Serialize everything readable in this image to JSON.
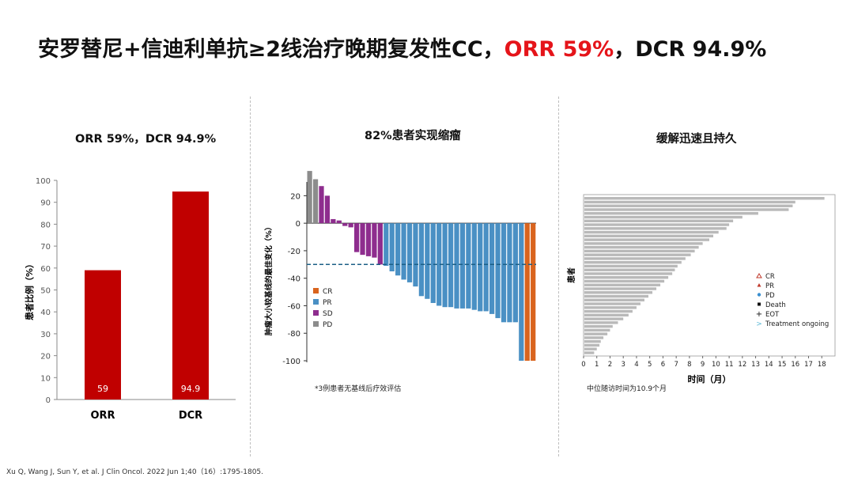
{
  "title": {
    "main": "安罗替尼+信迪利单抗≥2线治疗晚期复发性CC，",
    "orr": "ORR 59%",
    "sep": "，",
    "dcr": "DCR 94.9%"
  },
  "footnote": "Xu Q, Wang J, Sun Y, et al. J Clin Oncol. 2022 Jun 1;40（16）:1795-1805.",
  "chart_data": [
    {
      "type": "bar",
      "title": "ORR 59%，DCR 94.9%",
      "ylabel": "患者比例（%）",
      "ylim": [
        0,
        100
      ],
      "yticks": [
        "0",
        "10",
        "20",
        "30",
        "40",
        "50",
        "60",
        "70",
        "80",
        "90",
        "100"
      ],
      "categories": [
        "ORR",
        "DCR"
      ],
      "values": [
        59,
        94.9
      ],
      "value_labels": [
        "59",
        "94.9"
      ],
      "color": "#c00000"
    },
    {
      "type": "bar",
      "subtype": "waterfall",
      "title": "82%患者实现缩瘤",
      "ylabel": "肿瘤大小较基线的最佳变化（%）",
      "ylim": [
        -100,
        30
      ],
      "yticks": [
        "20",
        "0",
        "-20",
        "-40",
        "-60",
        "-80",
        "-100"
      ],
      "reference_line": -30,
      "legend": [
        {
          "label": "CR",
          "color": "#d9641e"
        },
        {
          "label": "PR",
          "color": "#4a90c4"
        },
        {
          "label": "SD",
          "color": "#8e2d8e"
        },
        {
          "label": "PD",
          "color": "#8c8c8c"
        }
      ],
      "values": [
        38,
        32,
        27,
        20,
        3,
        2,
        -2,
        -3,
        -21,
        -23,
        -24,
        -25,
        -30,
        -31,
        -35,
        -38,
        -41,
        -43,
        -46,
        -53,
        -55,
        -58,
        -60,
        -61,
        -61,
        -62,
        -62,
        -62,
        -63,
        -64,
        -64,
        -66,
        -69,
        -72,
        -72,
        -72,
        -100,
        -100,
        -100
      ],
      "categories_status": [
        "PD",
        "PD",
        "SD",
        "SD",
        "SD",
        "SD",
        "SD",
        "SD",
        "SD",
        "SD",
        "SD",
        "SD",
        "SD",
        "PR",
        "PR",
        "PR",
        "PR",
        "PR",
        "PR",
        "PR",
        "PR",
        "PR",
        "PR",
        "PR",
        "PR",
        "PR",
        "PR",
        "PR",
        "PR",
        "PR",
        "PR",
        "PR",
        "PR",
        "PR",
        "PR",
        "PR",
        "PR",
        "CR",
        "CR"
      ],
      "footnote": "*3例患者无基线后疗效评估"
    },
    {
      "type": "swimmer",
      "title": "缓解迅速且持久",
      "xlabel": "时间（月）",
      "ylabel": "患者",
      "xlim": [
        0,
        19
      ],
      "xticks": [
        "0",
        "1",
        "2",
        "3",
        "4",
        "5",
        "6",
        "7",
        "8",
        "9",
        "10",
        "11",
        "12",
        "13",
        "14",
        "15",
        "16",
        "17",
        "18"
      ],
      "legend": [
        {
          "label": "CR",
          "symbol": "open-triangle",
          "color": "#c0392b"
        },
        {
          "label": "PR",
          "symbol": "triangle",
          "color": "#c0392b"
        },
        {
          "label": "PD",
          "symbol": "dot",
          "color": "#3a8fd0"
        },
        {
          "label": "Death",
          "symbol": "square",
          "color": "#111111"
        },
        {
          "label": "EOT",
          "symbol": "plus",
          "color": "#111111"
        },
        {
          "label": "Treatment ongoing",
          "symbol": "arrow",
          "color": "#5bb8d6"
        }
      ],
      "durations": [
        18.2,
        16.0,
        15.8,
        15.5,
        13.2,
        12.0,
        11.3,
        11.0,
        10.8,
        10.2,
        9.8,
        9.5,
        9.0,
        8.7,
        8.4,
        8.1,
        7.7,
        7.4,
        7.1,
        6.9,
        6.7,
        6.4,
        6.1,
        5.8,
        5.5,
        5.2,
        4.9,
        4.6,
        4.3,
        4.0,
        3.7,
        3.4,
        3.0,
        2.6,
        2.2,
        2.0,
        1.8,
        1.5,
        1.3,
        1.2,
        1.0,
        0.8
      ],
      "note": "中位随访时间为10.9个月"
    }
  ]
}
